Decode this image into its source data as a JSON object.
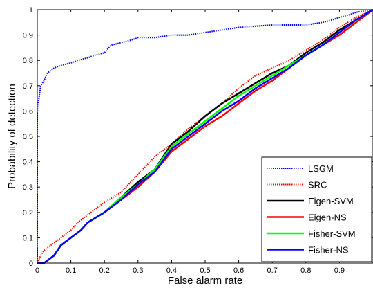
{
  "chart_data": {
    "type": "line",
    "title": "",
    "xlabel": "False alarm rate",
    "ylabel": "Probability of detection",
    "xlim": [
      0,
      1
    ],
    "ylim": [
      0,
      1
    ],
    "xticks": [
      "0",
      "0.1",
      "0.2",
      "0.3",
      "0.4",
      "0.5",
      "0.6",
      "0.7",
      "0.8",
      "0.9"
    ],
    "yticks": [
      "0",
      "0.1",
      "0.2",
      "0.3",
      "0.4",
      "0.5",
      "0.6",
      "0.7",
      "0.8",
      "0.9",
      "1"
    ],
    "grid": false,
    "legend_position": "bottom-right",
    "series": [
      {
        "name": "LSGM",
        "color": "#0000ff",
        "style": "dotted",
        "points": [
          [
            0,
            0
          ],
          [
            0,
            0.6
          ],
          [
            0.005,
            0.65
          ],
          [
            0.01,
            0.7
          ],
          [
            0.02,
            0.72
          ],
          [
            0.03,
            0.75
          ],
          [
            0.05,
            0.77
          ],
          [
            0.07,
            0.78
          ],
          [
            0.1,
            0.79
          ],
          [
            0.12,
            0.8
          ],
          [
            0.15,
            0.81
          ],
          [
            0.17,
            0.82
          ],
          [
            0.2,
            0.83
          ],
          [
            0.22,
            0.86
          ],
          [
            0.25,
            0.87
          ],
          [
            0.28,
            0.88
          ],
          [
            0.3,
            0.89
          ],
          [
            0.35,
            0.89
          ],
          [
            0.4,
            0.9
          ],
          [
            0.45,
            0.9
          ],
          [
            0.5,
            0.91
          ],
          [
            0.55,
            0.92
          ],
          [
            0.6,
            0.93
          ],
          [
            0.7,
            0.94
          ],
          [
            0.8,
            0.94
          ],
          [
            0.85,
            0.95
          ],
          [
            0.88,
            0.96
          ],
          [
            0.9,
            0.97
          ],
          [
            0.93,
            0.98
          ],
          [
            0.95,
            0.99
          ],
          [
            1,
            1
          ]
        ]
      },
      {
        "name": "SRC",
        "color": "#ff0000",
        "style": "dotted",
        "points": [
          [
            0,
            0
          ],
          [
            0.01,
            0.03
          ],
          [
            0.02,
            0.05
          ],
          [
            0.04,
            0.07
          ],
          [
            0.06,
            0.09
          ],
          [
            0.08,
            0.11
          ],
          [
            0.1,
            0.13
          ],
          [
            0.12,
            0.16
          ],
          [
            0.15,
            0.19
          ],
          [
            0.18,
            0.22
          ],
          [
            0.2,
            0.24
          ],
          [
            0.25,
            0.28
          ],
          [
            0.3,
            0.35
          ],
          [
            0.35,
            0.42
          ],
          [
            0.4,
            0.47
          ],
          [
            0.45,
            0.53
          ],
          [
            0.5,
            0.58
          ],
          [
            0.55,
            0.63
          ],
          [
            0.6,
            0.69
          ],
          [
            0.65,
            0.74
          ],
          [
            0.7,
            0.77
          ],
          [
            0.75,
            0.8
          ],
          [
            0.8,
            0.84
          ],
          [
            0.85,
            0.88
          ],
          [
            0.9,
            0.93
          ],
          [
            0.95,
            0.97
          ],
          [
            1,
            1
          ]
        ]
      },
      {
        "name": "Eigen-SVM",
        "color": "#000000",
        "style": "solid",
        "points": [
          [
            0,
            0
          ],
          [
            0.02,
            0
          ],
          [
            0.05,
            0.03
          ],
          [
            0.07,
            0.07
          ],
          [
            0.1,
            0.1
          ],
          [
            0.13,
            0.13
          ],
          [
            0.15,
            0.16
          ],
          [
            0.2,
            0.2
          ],
          [
            0.25,
            0.26
          ],
          [
            0.3,
            0.32
          ],
          [
            0.35,
            0.37
          ],
          [
            0.4,
            0.47
          ],
          [
            0.45,
            0.52
          ],
          [
            0.5,
            0.58
          ],
          [
            0.55,
            0.63
          ],
          [
            0.6,
            0.67
          ],
          [
            0.65,
            0.71
          ],
          [
            0.7,
            0.75
          ],
          [
            0.75,
            0.78
          ],
          [
            0.8,
            0.83
          ],
          [
            0.85,
            0.87
          ],
          [
            0.9,
            0.92
          ],
          [
            0.95,
            0.96
          ],
          [
            1,
            1
          ]
        ]
      },
      {
        "name": "Eigen-NS",
        "color": "#ff0000",
        "style": "solid",
        "points": [
          [
            0,
            0
          ],
          [
            0.02,
            0
          ],
          [
            0.05,
            0.03
          ],
          [
            0.07,
            0.07
          ],
          [
            0.1,
            0.1
          ],
          [
            0.13,
            0.13
          ],
          [
            0.15,
            0.16
          ],
          [
            0.2,
            0.2
          ],
          [
            0.25,
            0.25
          ],
          [
            0.3,
            0.3
          ],
          [
            0.35,
            0.36
          ],
          [
            0.4,
            0.44
          ],
          [
            0.45,
            0.49
          ],
          [
            0.5,
            0.54
          ],
          [
            0.55,
            0.58
          ],
          [
            0.6,
            0.63
          ],
          [
            0.65,
            0.68
          ],
          [
            0.7,
            0.72
          ],
          [
            0.75,
            0.77
          ],
          [
            0.8,
            0.82
          ],
          [
            0.85,
            0.86
          ],
          [
            0.9,
            0.9
          ],
          [
            0.95,
            0.95
          ],
          [
            1,
            1
          ]
        ]
      },
      {
        "name": "Fisher-SVM",
        "color": "#00ff00",
        "style": "solid",
        "points": [
          [
            0,
            0
          ],
          [
            0.02,
            0
          ],
          [
            0.05,
            0.03
          ],
          [
            0.07,
            0.07
          ],
          [
            0.1,
            0.1
          ],
          [
            0.13,
            0.13
          ],
          [
            0.15,
            0.16
          ],
          [
            0.2,
            0.2
          ],
          [
            0.25,
            0.26
          ],
          [
            0.3,
            0.31
          ],
          [
            0.35,
            0.37
          ],
          [
            0.4,
            0.46
          ],
          [
            0.45,
            0.51
          ],
          [
            0.5,
            0.56
          ],
          [
            0.55,
            0.61
          ],
          [
            0.6,
            0.66
          ],
          [
            0.65,
            0.7
          ],
          [
            0.7,
            0.74
          ],
          [
            0.75,
            0.78
          ],
          [
            0.8,
            0.82
          ],
          [
            0.85,
            0.86
          ],
          [
            0.9,
            0.91
          ],
          [
            0.95,
            0.96
          ],
          [
            1,
            1
          ]
        ]
      },
      {
        "name": "Fisher-NS",
        "color": "#0000ff",
        "style": "solid",
        "points": [
          [
            0,
            0
          ],
          [
            0.02,
            0
          ],
          [
            0.05,
            0.03
          ],
          [
            0.07,
            0.07
          ],
          [
            0.1,
            0.1
          ],
          [
            0.13,
            0.13
          ],
          [
            0.15,
            0.16
          ],
          [
            0.2,
            0.2
          ],
          [
            0.25,
            0.25
          ],
          [
            0.3,
            0.31
          ],
          [
            0.35,
            0.36
          ],
          [
            0.4,
            0.45
          ],
          [
            0.45,
            0.5
          ],
          [
            0.5,
            0.55
          ],
          [
            0.55,
            0.6
          ],
          [
            0.6,
            0.64
          ],
          [
            0.65,
            0.69
          ],
          [
            0.7,
            0.73
          ],
          [
            0.75,
            0.77
          ],
          [
            0.8,
            0.82
          ],
          [
            0.85,
            0.86
          ],
          [
            0.9,
            0.91
          ],
          [
            0.95,
            0.96
          ],
          [
            1,
            1
          ]
        ]
      }
    ]
  }
}
